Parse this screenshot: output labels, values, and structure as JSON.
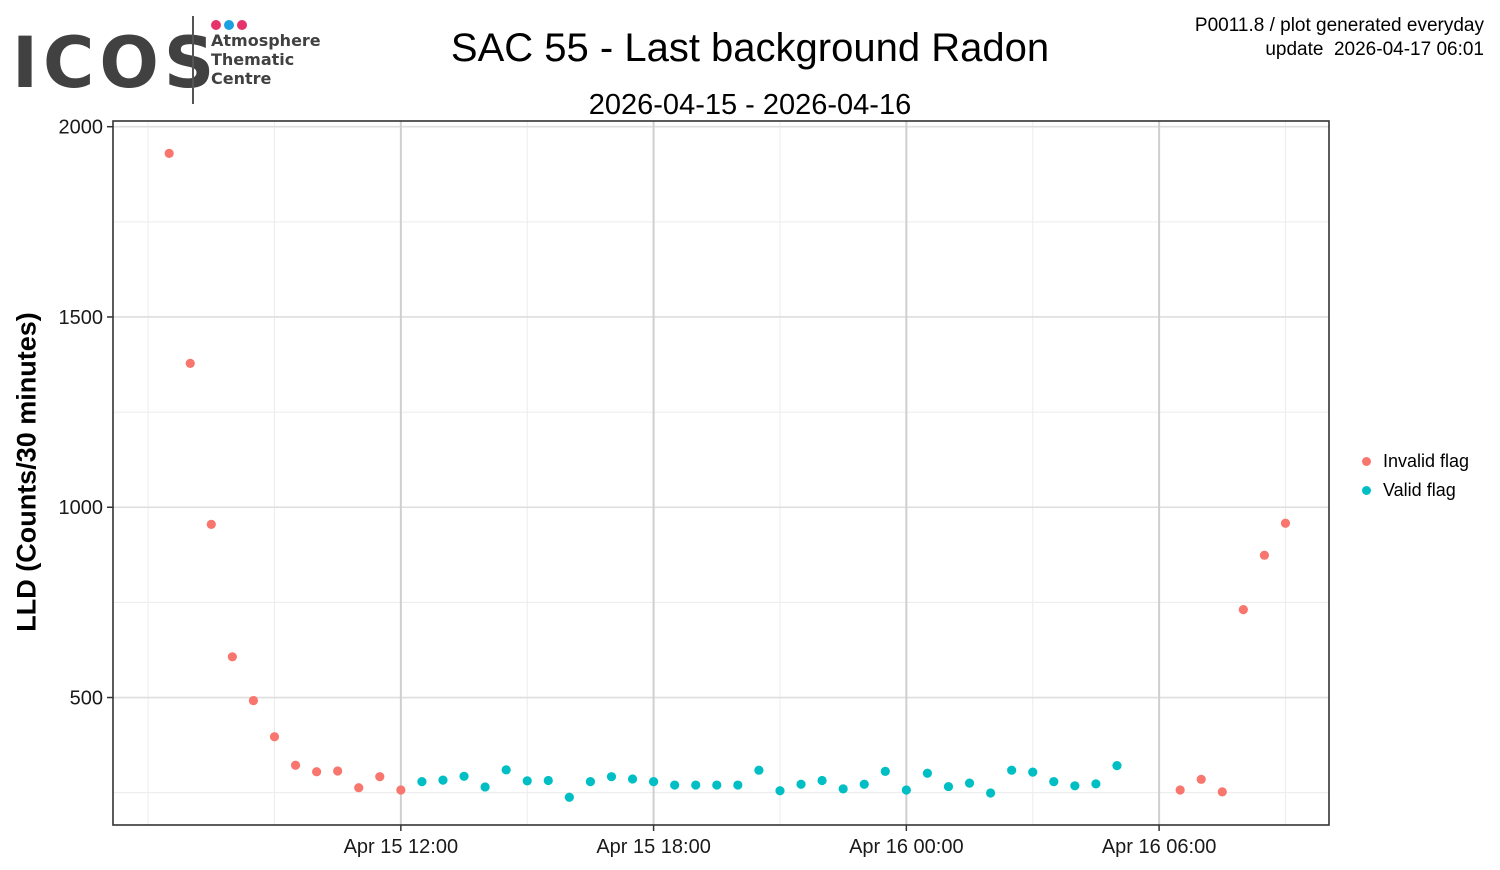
{
  "logo": {
    "text": "ICOS",
    "subtitle_lines": [
      "Atmosphere",
      "Thematic",
      "Centre"
    ],
    "dot_colors": [
      "#e5336b",
      "#1ba1e2",
      "#e5336b"
    ]
  },
  "header": {
    "title": "SAC 55 - Last background Radon",
    "subtitle": "2026-04-15 - 2026-04-16",
    "note_line1": "P0011.8 / plot generated everyday",
    "note_line2": "update  2026-04-17 06:01"
  },
  "chart_data": {
    "type": "scatter",
    "title": "SAC 55 - Last background Radon",
    "subtitle": "2026-04-15 - 2026-04-16",
    "xlabel": "",
    "ylabel": "LLD (Counts/30 minutes)",
    "x_ticks": [
      "Apr 15 12:00",
      "Apr 15 18:00",
      "Apr 16 00:00",
      "Apr 16 06:00"
    ],
    "y_ticks": [
      500,
      1000,
      1500,
      2000
    ],
    "ylim": [
      165,
      2015
    ],
    "xlim": [
      "2026-04-15 05:10",
      "2026-04-16 10:02"
    ],
    "grid": true,
    "legend_position": "right",
    "series": [
      {
        "name": "Invalid flag",
        "color": "#f8766d",
        "points": [
          {
            "x": "2026-04-15 06:30",
            "y": 1930
          },
          {
            "x": "2026-04-15 07:00",
            "y": 1378
          },
          {
            "x": "2026-04-15 07:30",
            "y": 955
          },
          {
            "x": "2026-04-15 08:00",
            "y": 607
          },
          {
            "x": "2026-04-15 08:30",
            "y": 492
          },
          {
            "x": "2026-04-15 09:00",
            "y": 397
          },
          {
            "x": "2026-04-15 09:30",
            "y": 322
          },
          {
            "x": "2026-04-15 10:00",
            "y": 305
          },
          {
            "x": "2026-04-15 10:30",
            "y": 307
          },
          {
            "x": "2026-04-15 11:00",
            "y": 263
          },
          {
            "x": "2026-04-15 11:30",
            "y": 292
          },
          {
            "x": "2026-04-15 12:00",
            "y": 257
          },
          {
            "x": "2026-04-16 06:30",
            "y": 257
          },
          {
            "x": "2026-04-16 07:00",
            "y": 285
          },
          {
            "x": "2026-04-16 07:30",
            "y": 252
          },
          {
            "x": "2026-04-16 08:00",
            "y": 731
          },
          {
            "x": "2026-04-16 08:30",
            "y": 874
          },
          {
            "x": "2026-04-16 09:00",
            "y": 958
          }
        ]
      },
      {
        "name": "Valid flag",
        "color": "#00bfc4",
        "points": [
          {
            "x": "2026-04-15 12:30",
            "y": 279
          },
          {
            "x": "2026-04-15 13:00",
            "y": 283
          },
          {
            "x": "2026-04-15 13:30",
            "y": 293
          },
          {
            "x": "2026-04-15 14:00",
            "y": 265
          },
          {
            "x": "2026-04-15 14:30",
            "y": 310
          },
          {
            "x": "2026-04-15 15:00",
            "y": 281
          },
          {
            "x": "2026-04-15 15:30",
            "y": 282
          },
          {
            "x": "2026-04-15 16:00",
            "y": 238
          },
          {
            "x": "2026-04-15 16:30",
            "y": 279
          },
          {
            "x": "2026-04-15 17:00",
            "y": 292
          },
          {
            "x": "2026-04-15 17:30",
            "y": 286
          },
          {
            "x": "2026-04-15 18:00",
            "y": 279
          },
          {
            "x": "2026-04-15 18:30",
            "y": 270
          },
          {
            "x": "2026-04-15 19:00",
            "y": 270
          },
          {
            "x": "2026-04-15 19:30",
            "y": 270
          },
          {
            "x": "2026-04-15 20:00",
            "y": 270
          },
          {
            "x": "2026-04-15 20:30",
            "y": 309
          },
          {
            "x": "2026-04-15 21:00",
            "y": 255
          },
          {
            "x": "2026-04-15 21:30",
            "y": 272
          },
          {
            "x": "2026-04-15 22:00",
            "y": 282
          },
          {
            "x": "2026-04-15 22:30",
            "y": 260
          },
          {
            "x": "2026-04-15 23:00",
            "y": 272
          },
          {
            "x": "2026-04-15 23:30",
            "y": 306
          },
          {
            "x": "2026-04-16 00:00",
            "y": 257
          },
          {
            "x": "2026-04-16 00:30",
            "y": 301
          },
          {
            "x": "2026-04-16 01:00",
            "y": 266
          },
          {
            "x": "2026-04-16 01:30",
            "y": 275
          },
          {
            "x": "2026-04-16 02:00",
            "y": 249
          },
          {
            "x": "2026-04-16 02:30",
            "y": 309
          },
          {
            "x": "2026-04-16 03:00",
            "y": 304
          },
          {
            "x": "2026-04-16 03:30",
            "y": 279
          },
          {
            "x": "2026-04-16 04:00",
            "y": 268
          },
          {
            "x": "2026-04-16 04:30",
            "y": 273
          },
          {
            "x": "2026-04-16 05:00",
            "y": 321
          }
        ]
      }
    ]
  }
}
